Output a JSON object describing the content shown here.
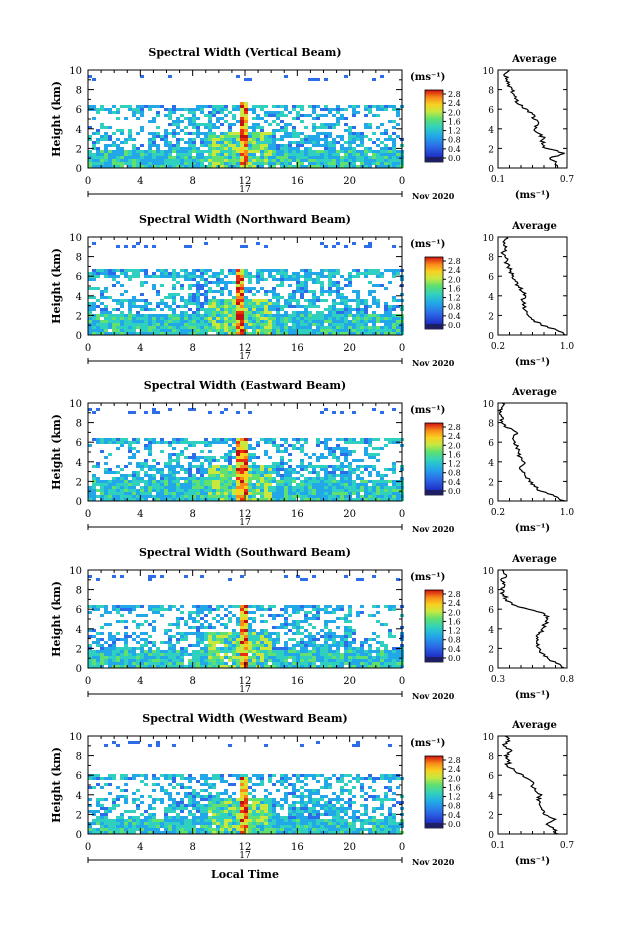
{
  "chart_data": [
    {
      "type": "heatmap",
      "title": "Spectral Width (Vertical Beam)",
      "ylabel": "Height (km)",
      "yticks": [
        "0",
        "2",
        "4",
        "6",
        "8",
        "10"
      ],
      "xticks": [
        "0",
        "4",
        "8",
        "12",
        "16",
        "20",
        "0"
      ],
      "date_label": "17",
      "month_label": "Nov 2020",
      "ylim": [
        0,
        10
      ],
      "xlim": [
        0,
        24
      ],
      "colorbar": {
        "unit": "(ms⁻¹)",
        "ticks": [
          "2.8",
          "2.4",
          "2.0",
          "1.6",
          "1.2",
          "0.8",
          "0.4",
          "0.0"
        ]
      },
      "average": {
        "title": "Average",
        "xlabel": "(ms⁻¹)",
        "xticks": [
          "0.1",
          "0.7"
        ],
        "xlim": [
          0.1,
          0.7
        ],
        "profile": [
          [
            0.0,
            0.62
          ],
          [
            0.5,
            0.6
          ],
          [
            1.0,
            0.55
          ],
          [
            1.5,
            0.68
          ],
          [
            2.0,
            0.52
          ],
          [
            2.5,
            0.48
          ],
          [
            3.0,
            0.5
          ],
          [
            3.5,
            0.46
          ],
          [
            4.0,
            0.42
          ],
          [
            4.5,
            0.45
          ],
          [
            5.0,
            0.41
          ],
          [
            5.5,
            0.4
          ],
          [
            6.0,
            0.35
          ],
          [
            6.5,
            0.28
          ],
          [
            7.0,
            0.26
          ],
          [
            7.5,
            0.24
          ],
          [
            8.0,
            0.22
          ],
          [
            8.5,
            0.2
          ],
          [
            9.0,
            0.18
          ],
          [
            9.5,
            0.15
          ],
          [
            10.0,
            0.2
          ]
        ]
      },
      "echo": {
        "low": [
          0.0,
          1.8
        ],
        "top": 6.3,
        "spike_x": 11.7,
        "spike_top": 6.5
      }
    },
    {
      "type": "heatmap",
      "title": "Spectral Width (Northward Beam)",
      "ylabel": "Height (km)",
      "yticks": [
        "0",
        "2",
        "4",
        "6",
        "8",
        "10"
      ],
      "xticks": [
        "0",
        "4",
        "8",
        "12",
        "16",
        "20",
        "0"
      ],
      "date_label": "17",
      "month_label": "Nov 2020",
      "ylim": [
        0,
        10
      ],
      "xlim": [
        0,
        24
      ],
      "colorbar": {
        "unit": "(ms⁻¹)",
        "ticks": [
          "2.8",
          "2.4",
          "2.0",
          "1.6",
          "1.2",
          "0.8",
          "0.4",
          "0.0"
        ]
      },
      "average": {
        "title": "Average",
        "xlabel": "(ms⁻¹)",
        "xticks": [
          "0.2",
          "1.0"
        ],
        "xlim": [
          0.2,
          1.0
        ],
        "profile": [
          [
            0.0,
            0.98
          ],
          [
            0.5,
            0.88
          ],
          [
            1.0,
            0.7
          ],
          [
            1.5,
            0.62
          ],
          [
            2.0,
            0.55
          ],
          [
            2.5,
            0.52
          ],
          [
            3.0,
            0.5
          ],
          [
            3.5,
            0.48
          ],
          [
            4.0,
            0.52
          ],
          [
            4.5,
            0.47
          ],
          [
            5.0,
            0.44
          ],
          [
            5.5,
            0.4
          ],
          [
            6.0,
            0.38
          ],
          [
            6.5,
            0.35
          ],
          [
            7.0,
            0.32
          ],
          [
            7.5,
            0.3
          ],
          [
            8.0,
            0.28
          ],
          [
            8.5,
            0.26
          ],
          [
            9.0,
            0.3
          ],
          [
            9.5,
            0.26
          ],
          [
            10.0,
            0.3
          ]
        ]
      },
      "echo": {
        "low": [
          0.0,
          2.0
        ],
        "top": 6.5,
        "spike_x": 11.5,
        "spike_top": 6.6
      }
    },
    {
      "type": "heatmap",
      "title": "Spectral Width (Eastward Beam)",
      "ylabel": "Height (km)",
      "yticks": [
        "0",
        "2",
        "4",
        "6",
        "8",
        "10"
      ],
      "xticks": [
        "0",
        "4",
        "8",
        "12",
        "16",
        "20",
        "0"
      ],
      "date_label": "17",
      "month_label": "Nov 2020",
      "ylim": [
        0,
        10
      ],
      "xlim": [
        0,
        24
      ],
      "colorbar": {
        "unit": "(ms⁻¹)",
        "ticks": [
          "2.8",
          "2.4",
          "2.0",
          "1.6",
          "1.2",
          "0.8",
          "0.4",
          "0.0"
        ]
      },
      "average": {
        "title": "Average",
        "xlabel": "(ms⁻¹)",
        "xticks": [
          "0.2",
          "1.0"
        ],
        "xlim": [
          0.2,
          1.0
        ],
        "profile": [
          [
            0.0,
            0.98
          ],
          [
            0.5,
            0.85
          ],
          [
            1.0,
            0.7
          ],
          [
            1.5,
            0.62
          ],
          [
            2.0,
            0.56
          ],
          [
            2.5,
            0.52
          ],
          [
            3.0,
            0.48
          ],
          [
            3.5,
            0.46
          ],
          [
            4.0,
            0.5
          ],
          [
            4.5,
            0.46
          ],
          [
            5.0,
            0.44
          ],
          [
            5.5,
            0.42
          ],
          [
            6.0,
            0.4
          ],
          [
            6.5,
            0.38
          ],
          [
            7.0,
            0.42
          ],
          [
            7.5,
            0.3
          ],
          [
            8.0,
            0.24
          ],
          [
            8.5,
            0.26
          ],
          [
            9.0,
            0.22
          ],
          [
            9.5,
            0.24
          ],
          [
            10.0,
            0.25
          ]
        ]
      },
      "echo": {
        "low": [
          0.0,
          2.0
        ],
        "top": 6.3,
        "spike_x": 11.6,
        "spike_top": 6.4
      }
    },
    {
      "type": "heatmap",
      "title": "Spectral Width (Southward Beam)",
      "ylabel": "Height (km)",
      "yticks": [
        "0",
        "2",
        "4",
        "6",
        "8",
        "10"
      ],
      "xticks": [
        "0",
        "4",
        "8",
        "12",
        "16",
        "20",
        "0"
      ],
      "date_label": "17",
      "month_label": "Nov 2020",
      "ylim": [
        0,
        10
      ],
      "xlim": [
        0,
        24
      ],
      "colorbar": {
        "unit": "(ms⁻¹)",
        "ticks": [
          "2.8",
          "2.4",
          "2.0",
          "1.6",
          "1.2",
          "0.8",
          "0.4",
          "0.0"
        ]
      },
      "average": {
        "title": "Average",
        "xlabel": "(ms⁻¹)",
        "xticks": [
          "0.3",
          "0.8"
        ],
        "xlim": [
          0.3,
          0.8
        ],
        "profile": [
          [
            0.0,
            0.78
          ],
          [
            0.5,
            0.72
          ],
          [
            1.0,
            0.66
          ],
          [
            1.5,
            0.62
          ],
          [
            2.0,
            0.6
          ],
          [
            2.5,
            0.58
          ],
          [
            3.0,
            0.58
          ],
          [
            3.5,
            0.6
          ],
          [
            4.0,
            0.62
          ],
          [
            4.5,
            0.64
          ],
          [
            5.0,
            0.66
          ],
          [
            5.5,
            0.64
          ],
          [
            6.0,
            0.52
          ],
          [
            6.5,
            0.4
          ],
          [
            7.0,
            0.36
          ],
          [
            7.5,
            0.34
          ],
          [
            8.0,
            0.33
          ],
          [
            8.5,
            0.35
          ],
          [
            9.0,
            0.32
          ],
          [
            9.5,
            0.36
          ],
          [
            10.0,
            0.33
          ]
        ]
      },
      "echo": {
        "low": [
          0.0,
          1.6
        ],
        "top": 6.3,
        "spike_x": 11.8,
        "spike_top": 6.3
      }
    },
    {
      "type": "heatmap",
      "title": "Spectral Width (Westward Beam)",
      "ylabel": "Height (km)",
      "yticks": [
        "0",
        "2",
        "4",
        "6",
        "8",
        "10"
      ],
      "xticks": [
        "0",
        "4",
        "8",
        "12",
        "16",
        "20",
        "0"
      ],
      "date_label": "17",
      "month_label": "Nov 2020",
      "xlabel": "Local Time",
      "ylim": [
        0,
        10
      ],
      "xlim": [
        0,
        24
      ],
      "colorbar": {
        "unit": "(ms⁻¹)",
        "ticks": [
          "2.8",
          "2.4",
          "2.0",
          "1.6",
          "1.2",
          "0.8",
          "0.4",
          "0.0"
        ]
      },
      "average": {
        "title": "Average",
        "xlabel": "(ms⁻¹)",
        "xticks": [
          "0.1",
          "0.7"
        ],
        "xlim": [
          0.1,
          0.7
        ],
        "profile": [
          [
            0.0,
            0.62
          ],
          [
            0.5,
            0.58
          ],
          [
            1.0,
            0.52
          ],
          [
            1.5,
            0.6
          ],
          [
            2.0,
            0.5
          ],
          [
            2.5,
            0.48
          ],
          [
            3.0,
            0.46
          ],
          [
            3.5,
            0.44
          ],
          [
            4.0,
            0.48
          ],
          [
            4.5,
            0.42
          ],
          [
            5.0,
            0.4
          ],
          [
            5.5,
            0.38
          ],
          [
            6.0,
            0.32
          ],
          [
            6.5,
            0.24
          ],
          [
            7.0,
            0.18
          ],
          [
            7.5,
            0.2
          ],
          [
            8.0,
            0.16
          ],
          [
            8.5,
            0.22
          ],
          [
            9.0,
            0.15
          ],
          [
            9.5,
            0.2
          ],
          [
            10.0,
            0.16
          ]
        ]
      },
      "echo": {
        "low": [
          0.0,
          1.5
        ],
        "top": 6.0,
        "spike_x": 11.7,
        "spike_top": 5.6
      }
    }
  ],
  "colors": {
    "scale": [
      "#1e1e64",
      "#2033c8",
      "#2c6ce8",
      "#22a8e8",
      "#30d0c0",
      "#60e070",
      "#c8e840",
      "#f8d020",
      "#f88818",
      "#e83010",
      "#c01010"
    ],
    "line": "#000000"
  }
}
